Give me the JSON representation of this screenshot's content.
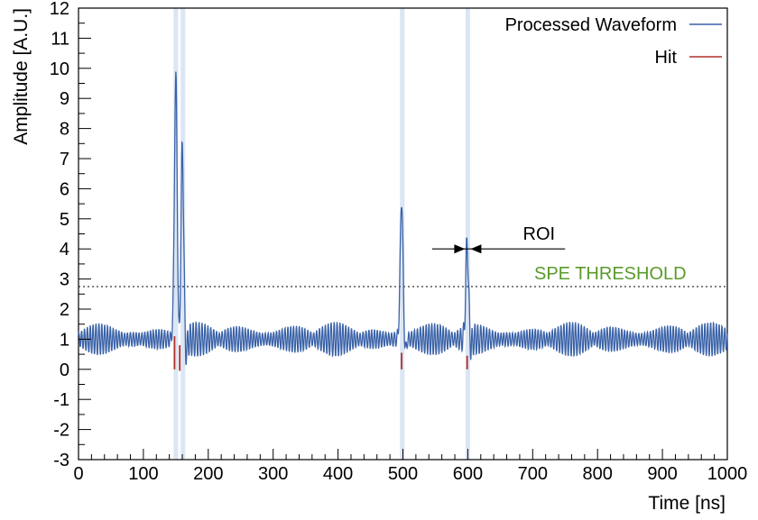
{
  "chart_data": {
    "type": "line",
    "xlabel": "Time [ns]",
    "ylabel": "Amplitude [A.U.]",
    "xlim": [
      0,
      1000
    ],
    "ylim": [
      -3,
      12
    ],
    "x_ticks": [
      0,
      100,
      200,
      300,
      400,
      500,
      600,
      700,
      800,
      900,
      1000
    ],
    "y_ticks": [
      -3,
      -2,
      -1,
      0,
      1,
      2,
      3,
      4,
      5,
      6,
      7,
      8,
      9,
      10,
      11,
      12
    ],
    "grid": false,
    "legend_position": "top-right",
    "series": [
      {
        "name": "Processed Waveform",
        "color": "#3a62a8",
        "baseline": 1.0,
        "noise_amplitude": 0.45,
        "peaks": [
          {
            "x": 150,
            "y": 9.7
          },
          {
            "x": 160,
            "y": 7.4
          },
          {
            "x": 498,
            "y": 5.65
          },
          {
            "x": 599,
            "y": 4.2
          }
        ]
      },
      {
        "name": "Hit",
        "color": "#b0302a",
        "markers": [
          {
            "x": 148,
            "y_top": 1.1,
            "y_bottom": 0.0
          },
          {
            "x": 156,
            "y_top": 0.8,
            "y_bottom": -0.05
          },
          {
            "x": 498,
            "y_top": 0.55,
            "y_bottom": 0.0
          },
          {
            "x": 599,
            "y_top": 0.45,
            "y_bottom": 0.0
          }
        ]
      }
    ],
    "highlight_bands": [
      {
        "x": 150,
        "color": "#dbe6f4"
      },
      {
        "x": 161,
        "color": "#dbe6f4"
      },
      {
        "x": 499,
        "color": "#dbe6f4"
      },
      {
        "x": 600,
        "color": "#dbe6f4"
      }
    ],
    "threshold": {
      "label": "SPE THRESHOLD",
      "value": 2.75,
      "color": "#5a9a2a"
    },
    "roi": {
      "label": "ROI",
      "x_from": 545,
      "x_to": 750,
      "y": 4.0,
      "peak_x": 600
    }
  }
}
